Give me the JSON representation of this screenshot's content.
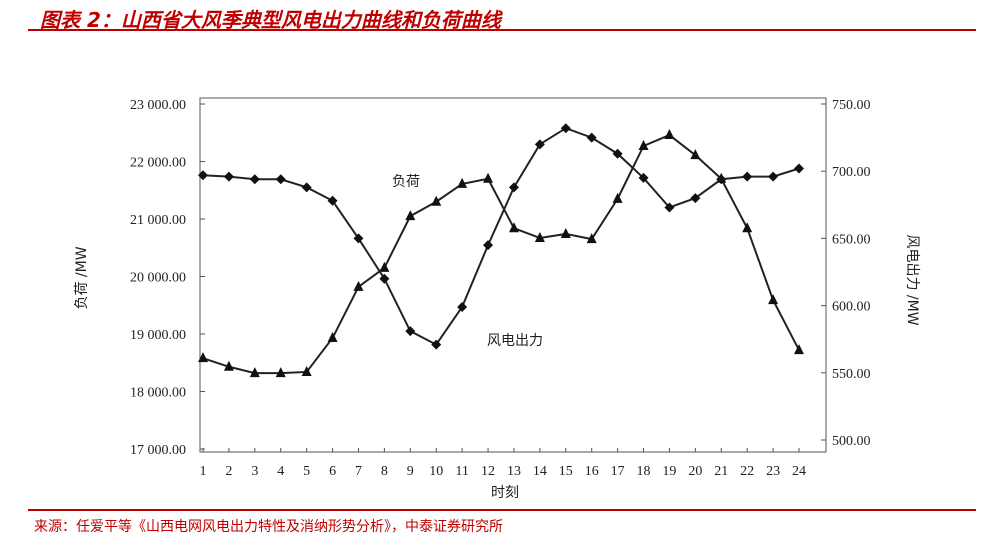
{
  "title": "图表 2：山西省大风季典型风电出力曲线和负荷曲线",
  "source": "来源：任爱平等《山西电网风电出力特性及消纳形势分析》，中泰证券研究所",
  "colors": {
    "accent": "#c00000",
    "series": "#222222"
  },
  "chart_data": {
    "type": "line",
    "xlabel": "时刻",
    "ylabel_left": "负荷 /MW",
    "ylabel_right": "风电出力 /MW",
    "x": [
      1,
      2,
      3,
      4,
      5,
      6,
      7,
      8,
      9,
      10,
      11,
      12,
      13,
      14,
      15,
      16,
      17,
      18,
      19,
      20,
      21,
      22,
      23,
      24
    ],
    "ylim_left": [
      17000,
      23000
    ],
    "yticks_left": [
      "17 000.00",
      "18 000.00",
      "19 000.00",
      "20 000.00",
      "21 000.00",
      "22 000.00",
      "23 000.00"
    ],
    "ylim_right": [
      500,
      750
    ],
    "yticks_right": [
      "500.00",
      "550.00",
      "600.00",
      "650.00",
      "700.00",
      "750.00"
    ],
    "grid": false,
    "series": [
      {
        "name": "负荷",
        "axis": "left",
        "marker": "triangle",
        "values": [
          18580,
          18430,
          18320,
          18320,
          18340,
          18930,
          19820,
          20150,
          21050,
          21300,
          21610,
          21700,
          20840,
          20670,
          20740,
          20650,
          21350,
          22270,
          22460,
          22110,
          21700,
          20840,
          19590,
          18720
        ]
      },
      {
        "name": "风电出力",
        "axis": "right",
        "marker": "diamond",
        "values": [
          697,
          696,
          694,
          694,
          688,
          678,
          650,
          620,
          581,
          571,
          599,
          645,
          688,
          720,
          732,
          725,
          713,
          695,
          673,
          680,
          694,
          696,
          696,
          702
        ]
      }
    ]
  }
}
